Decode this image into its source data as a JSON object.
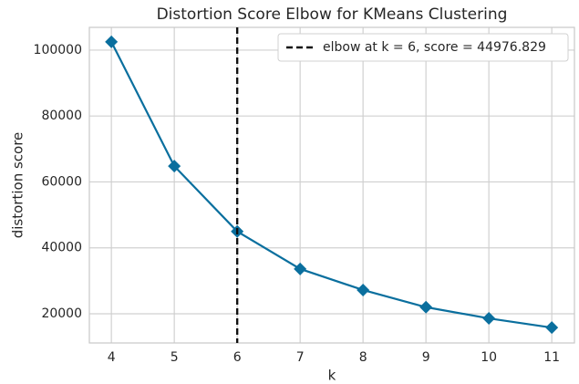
{
  "chart_data": {
    "type": "line",
    "title": "Distortion Score Elbow for KMeans Clustering",
    "x_label": "k",
    "y_label": "distortion score",
    "x": [
      4,
      5,
      6,
      7,
      8,
      9,
      10,
      11
    ],
    "series": [
      {
        "name": "distortion score",
        "color": "#0a6f9e",
        "values": [
          102500,
          64800,
          44976.829,
          33600,
          27200,
          22000,
          18600,
          15800
        ]
      }
    ],
    "elbow_x": 6,
    "elbow_label": "elbow at k = 6, score = 44976.829",
    "xlim": [
      3.65,
      11.36
    ],
    "xticks": [
      4,
      5,
      6,
      7,
      8,
      9,
      10,
      11
    ],
    "ylim": [
      11140,
      106900
    ],
    "yticks": [
      20000,
      40000,
      60000,
      80000,
      100000
    ],
    "grid": true,
    "legend_position": "upper right"
  }
}
